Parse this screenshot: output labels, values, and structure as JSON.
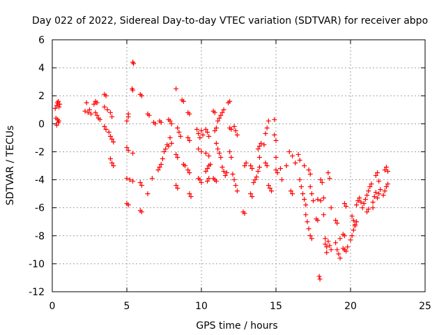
{
  "chart_data": {
    "type": "scatter",
    "title": "Day 022 of 2022, Sidereal Day-to-day VTEC variation (SDTVAR) for receiver abpo",
    "xlabel": "GPS time / hours",
    "ylabel": "SDTVAR / TECUs",
    "xlim": [
      0,
      25
    ],
    "ylim": [
      -12,
      6
    ],
    "xticks": [
      "0",
      "5",
      "10",
      "15",
      "20",
      "25"
    ],
    "yticks": [
      "-12",
      "-10",
      "-8",
      "-6",
      "-4",
      "-2",
      "0",
      "2",
      "4",
      "6"
    ],
    "grid": true,
    "marker": "plus",
    "color": "#ff0000",
    "series": [
      {
        "name": "SDTVAR",
        "points": [
          [
            0.2,
            1.1
          ],
          [
            0.3,
            1.3
          ],
          [
            0.35,
            1.5
          ],
          [
            0.4,
            1.6
          ],
          [
            0.45,
            1.2
          ],
          [
            0.5,
            1.4
          ],
          [
            0.25,
            0.4
          ],
          [
            0.35,
            0.3
          ],
          [
            0.4,
            0.1
          ],
          [
            0.3,
            -0.1
          ],
          [
            0.45,
            0.2
          ],
          [
            2.2,
            0.9
          ],
          [
            2.4,
            0.8
          ],
          [
            2.5,
            1.0
          ],
          [
            2.6,
            0.7
          ],
          [
            2.3,
            1.5
          ],
          [
            2.8,
            1.4
          ],
          [
            2.9,
            1.6
          ],
          [
            3.0,
            1.5
          ],
          [
            2.9,
            0.8
          ],
          [
            3.0,
            0.6
          ],
          [
            3.1,
            0.4
          ],
          [
            3.2,
            0.3
          ],
          [
            3.5,
            2.1
          ],
          [
            3.6,
            2.0
          ],
          [
            3.5,
            1.2
          ],
          [
            3.7,
            1.0
          ],
          [
            3.9,
            0.8
          ],
          [
            4.0,
            0.5
          ],
          [
            3.5,
            -0.2
          ],
          [
            3.6,
            -0.4
          ],
          [
            3.8,
            -0.6
          ],
          [
            3.9,
            -0.9
          ],
          [
            4.0,
            -1.1
          ],
          [
            4.1,
            -1.3
          ],
          [
            3.9,
            -2.5
          ],
          [
            4.0,
            -2.8
          ],
          [
            4.1,
            -3.0
          ],
          [
            5.0,
            -1.7
          ],
          [
            5.1,
            -1.9
          ],
          [
            5.4,
            -2.1
          ],
          [
            5.1,
            0.5
          ],
          [
            5.0,
            0.2
          ],
          [
            5.1,
            0.7
          ],
          [
            5.0,
            -3.9
          ],
          [
            5.2,
            -4.0
          ],
          [
            5.4,
            -4.1
          ],
          [
            5.0,
            -5.7
          ],
          [
            5.1,
            -5.8
          ],
          [
            5.4,
            4.4
          ],
          [
            5.45,
            4.3
          ],
          [
            5.35,
            2.5
          ],
          [
            5.4,
            2.4
          ],
          [
            5.9,
            2.1
          ],
          [
            6.0,
            2.0
          ],
          [
            5.9,
            -4.2
          ],
          [
            6.0,
            -4.4
          ],
          [
            5.9,
            -6.2
          ],
          [
            6.0,
            -6.3
          ],
          [
            6.4,
            0.7
          ],
          [
            6.5,
            0.6
          ],
          [
            6.4,
            -5.0
          ],
          [
            6.7,
            -3.9
          ],
          [
            6.8,
            0.1
          ],
          [
            6.9,
            0.0
          ],
          [
            7.2,
            0.2
          ],
          [
            7.3,
            0.1
          ],
          [
            7.3,
            -2.9
          ],
          [
            7.4,
            -2.5
          ],
          [
            7.5,
            -2.0
          ],
          [
            7.6,
            -1.8
          ],
          [
            7.7,
            -1.5
          ],
          [
            7.1,
            -3.3
          ],
          [
            7.2,
            -3.1
          ],
          [
            7.8,
            0.3
          ],
          [
            7.9,
            0.2
          ],
          [
            8.0,
            0.0
          ],
          [
            7.9,
            -1.0
          ],
          [
            8.0,
            -1.4
          ],
          [
            7.8,
            -1.6
          ],
          [
            8.3,
            2.5
          ],
          [
            8.4,
            -0.3
          ],
          [
            8.5,
            -0.6
          ],
          [
            8.6,
            -0.9
          ],
          [
            8.3,
            -2.2
          ],
          [
            8.4,
            -2.4
          ],
          [
            8.3,
            -4.4
          ],
          [
            8.4,
            -4.6
          ],
          [
            8.7,
            1.7
          ],
          [
            8.8,
            1.6
          ],
          [
            8.8,
            -2.9
          ],
          [
            8.9,
            -3.0
          ],
          [
            9.1,
            0.8
          ],
          [
            9.2,
            0.7
          ],
          [
            9.1,
            -1.0
          ],
          [
            9.2,
            -1.2
          ],
          [
            9.1,
            -3.3
          ],
          [
            9.2,
            -3.5
          ],
          [
            9.2,
            -5.0
          ],
          [
            9.3,
            -5.2
          ],
          [
            9.7,
            -0.4
          ],
          [
            9.8,
            -0.7
          ],
          [
            9.9,
            -1.0
          ],
          [
            10.0,
            -0.5
          ],
          [
            10.1,
            -0.8
          ],
          [
            9.8,
            -1.8
          ],
          [
            10.0,
            -2.0
          ],
          [
            9.8,
            -3.9
          ],
          [
            9.9,
            -4.0
          ],
          [
            10.0,
            -4.2
          ],
          [
            10.3,
            -0.4
          ],
          [
            10.4,
            -0.6
          ],
          [
            10.5,
            -0.9
          ],
          [
            10.3,
            -2.1
          ],
          [
            10.5,
            -2.3
          ],
          [
            10.3,
            -3.4
          ],
          [
            10.4,
            -3.2
          ],
          [
            10.5,
            -3.0
          ],
          [
            10.6,
            -2.9
          ],
          [
            10.4,
            -4.1
          ],
          [
            10.5,
            -3.9
          ],
          [
            10.8,
            0.9
          ],
          [
            10.9,
            0.8
          ],
          [
            10.9,
            -0.5
          ],
          [
            11.0,
            -0.3
          ],
          [
            10.8,
            -3.9
          ],
          [
            10.9,
            -4.0
          ],
          [
            11.0,
            -4.1
          ],
          [
            11.1,
            0.2
          ],
          [
            11.2,
            0.4
          ],
          [
            11.3,
            0.6
          ],
          [
            11.4,
            0.8
          ],
          [
            11.5,
            1.0
          ],
          [
            11.0,
            -1.4
          ],
          [
            11.1,
            -1.8
          ],
          [
            11.2,
            -2.1
          ],
          [
            11.3,
            -2.4
          ],
          [
            11.4,
            -3.1
          ],
          [
            11.5,
            -3.4
          ],
          [
            11.6,
            -3.7
          ],
          [
            11.8,
            1.5
          ],
          [
            11.9,
            1.6
          ],
          [
            11.9,
            -0.3
          ],
          [
            12.0,
            -0.4
          ],
          [
            11.7,
            -3.5
          ],
          [
            11.9,
            -2.0
          ],
          [
            12.0,
            -2.4
          ],
          [
            12.1,
            -3.6
          ],
          [
            12.2,
            -4.0
          ],
          [
            12.3,
            -4.4
          ],
          [
            12.4,
            -4.8
          ],
          [
            12.2,
            -0.2
          ],
          [
            12.3,
            -0.5
          ],
          [
            12.4,
            -0.8
          ],
          [
            12.8,
            -6.3
          ],
          [
            12.9,
            -6.4
          ],
          [
            12.9,
            -3.0
          ],
          [
            13.0,
            -2.8
          ],
          [
            13.3,
            -5.0
          ],
          [
            13.4,
            -5.2
          ],
          [
            13.3,
            -3.0
          ],
          [
            13.4,
            -3.2
          ],
          [
            13.5,
            -4.2
          ],
          [
            13.6,
            -4.0
          ],
          [
            13.7,
            -3.8
          ],
          [
            13.8,
            -3.4
          ],
          [
            13.9,
            -3.1
          ],
          [
            13.8,
            -1.8
          ],
          [
            13.9,
            -1.6
          ],
          [
            14.0,
            -1.4
          ],
          [
            13.9,
            -2.4
          ],
          [
            14.2,
            -1.5
          ],
          [
            14.3,
            -0.7
          ],
          [
            14.4,
            -0.3
          ],
          [
            14.5,
            0.2
          ],
          [
            14.3,
            -2.8
          ],
          [
            14.4,
            -3.0
          ],
          [
            14.5,
            -4.4
          ],
          [
            14.6,
            -4.6
          ],
          [
            14.7,
            -4.8
          ],
          [
            14.9,
            0.3
          ],
          [
            14.9,
            -0.8
          ],
          [
            15.0,
            -1.2
          ],
          [
            15.0,
            -2.4
          ],
          [
            15.0,
            -3.3
          ],
          [
            15.1,
            -3.5
          ],
          [
            15.3,
            -3.2
          ],
          [
            15.4,
            -4.0
          ],
          [
            15.7,
            -3.0
          ],
          [
            15.9,
            -2.0
          ],
          [
            16.1,
            -2.3
          ],
          [
            16.0,
            -4.8
          ],
          [
            16.1,
            -5.0
          ],
          [
            16.3,
            -2.8
          ],
          [
            16.5,
            -2.2
          ],
          [
            16.6,
            -2.6
          ],
          [
            16.6,
            -4.0
          ],
          [
            16.7,
            -4.5
          ],
          [
            16.8,
            -5.0
          ],
          [
            16.9,
            -5.4
          ],
          [
            17.0,
            -5.8
          ],
          [
            16.9,
            -3.0
          ],
          [
            17.2,
            -3.3
          ],
          [
            17.3,
            -3.6
          ],
          [
            17.0,
            -6.5
          ],
          [
            17.1,
            -7.0
          ],
          [
            17.2,
            -7.5
          ],
          [
            17.3,
            -8.0
          ],
          [
            17.4,
            -8.2
          ],
          [
            17.3,
            -4.5
          ],
          [
            17.4,
            -5.0
          ],
          [
            17.5,
            -5.5
          ],
          [
            17.7,
            -6.8
          ],
          [
            17.8,
            -6.9
          ],
          [
            17.9,
            -10.9
          ],
          [
            17.95,
            -11.1
          ],
          [
            17.8,
            -5.4
          ],
          [
            18.0,
            -5.5
          ],
          [
            18.0,
            -4.0
          ],
          [
            18.1,
            -4.2
          ],
          [
            18.2,
            -5.3
          ],
          [
            18.2,
            -6.5
          ],
          [
            18.3,
            -8.2
          ],
          [
            18.3,
            -8.6
          ],
          [
            18.4,
            -8.8
          ],
          [
            18.4,
            -9.2
          ],
          [
            18.5,
            -8.4
          ],
          [
            18.6,
            -8.7
          ],
          [
            18.7,
            -9.0
          ],
          [
            18.5,
            -3.5
          ],
          [
            18.6,
            -3.9
          ],
          [
            18.7,
            -6.0
          ],
          [
            19.0,
            -8.5
          ],
          [
            19.1,
            -9.0
          ],
          [
            19.2,
            -9.3
          ],
          [
            19.3,
            -9.6
          ],
          [
            19.0,
            -6.9
          ],
          [
            19.1,
            -7.1
          ],
          [
            19.3,
            -8.2
          ],
          [
            19.5,
            -8.9
          ],
          [
            19.6,
            -9.0
          ],
          [
            19.7,
            -9.1
          ],
          [
            19.8,
            -8.8
          ],
          [
            19.5,
            -7.9
          ],
          [
            19.6,
            -8.0
          ],
          [
            19.6,
            -5.7
          ],
          [
            19.7,
            -5.9
          ],
          [
            20.0,
            -8.3
          ],
          [
            20.1,
            -8.0
          ],
          [
            20.2,
            -7.6
          ],
          [
            20.3,
            -7.2
          ],
          [
            20.1,
            -6.6
          ],
          [
            20.2,
            -6.9
          ],
          [
            20.3,
            -7.3
          ],
          [
            20.4,
            -7.0
          ],
          [
            20.4,
            -5.8
          ],
          [
            20.5,
            -5.5
          ],
          [
            20.6,
            -5.3
          ],
          [
            20.7,
            -5.6
          ],
          [
            20.8,
            -6.0
          ],
          [
            20.9,
            -5.7
          ],
          [
            21.0,
            -5.4
          ],
          [
            21.1,
            -5.1
          ],
          [
            21.2,
            -4.8
          ],
          [
            21.3,
            -4.5
          ],
          [
            21.4,
            -4.3
          ],
          [
            21.1,
            -6.3
          ],
          [
            21.2,
            -6.1
          ],
          [
            21.5,
            -5.6
          ],
          [
            21.6,
            -5.2
          ],
          [
            21.7,
            -4.9
          ],
          [
            21.5,
            -6.0
          ],
          [
            21.8,
            -5.3
          ],
          [
            21.9,
            -5.0
          ],
          [
            22.0,
            -4.7
          ],
          [
            21.9,
            -4.1
          ],
          [
            21.7,
            -3.7
          ],
          [
            21.8,
            -3.5
          ],
          [
            22.2,
            -5.1
          ],
          [
            22.3,
            -4.8
          ],
          [
            22.4,
            -4.5
          ],
          [
            22.5,
            -4.3
          ],
          [
            22.3,
            -3.3
          ],
          [
            22.4,
            -3.1
          ],
          [
            22.5,
            -3.4
          ]
        ]
      }
    ]
  }
}
